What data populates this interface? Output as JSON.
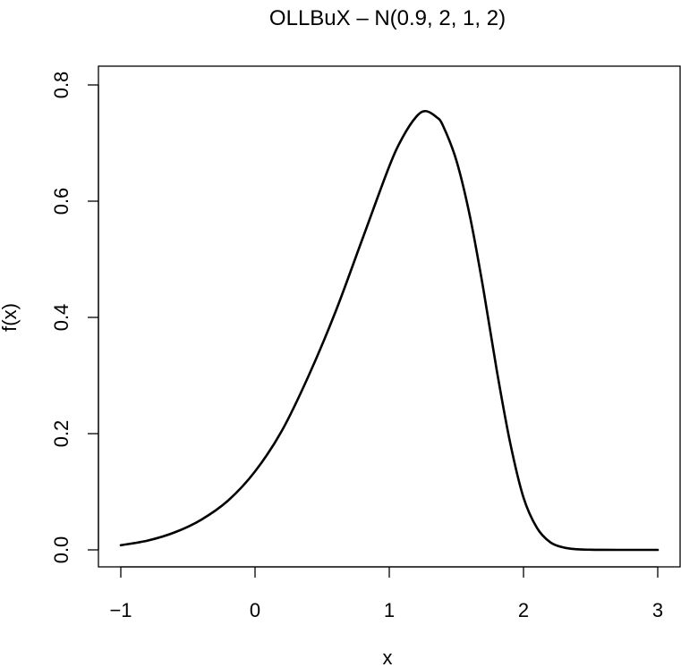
{
  "chart_data": {
    "type": "line",
    "title": "OLLBuX – N(0.9, 2, 1, 2)",
    "xlabel": "x",
    "ylabel": "f(x)",
    "xlim": [
      -1,
      3
    ],
    "ylim": [
      0,
      0.8
    ],
    "xticks": [
      -1,
      0,
      1,
      2,
      3
    ],
    "xtick_labels": [
      "−1",
      "0",
      "1",
      "2",
      "3"
    ],
    "yticks": [
      0,
      0.2,
      0.4,
      0.6,
      0.8
    ],
    "ytick_labels": [
      "0.0",
      "0.2",
      "0.4",
      "0.6",
      "0.8"
    ],
    "grid": false,
    "line_color": "#000000",
    "series": [
      {
        "x": [
          -1.0,
          -0.8,
          -0.6,
          -0.4,
          -0.2,
          0.0,
          0.2,
          0.4,
          0.6,
          0.8,
          1.0,
          1.1,
          1.2,
          1.27,
          1.35,
          1.4,
          1.5,
          1.6,
          1.7,
          1.8,
          1.9,
          2.0,
          2.1,
          2.2,
          2.3,
          2.4,
          2.5,
          2.6,
          2.7,
          2.8,
          3.0
        ],
        "y": [
          0.008,
          0.016,
          0.03,
          0.052,
          0.085,
          0.135,
          0.205,
          0.3,
          0.41,
          0.535,
          0.66,
          0.71,
          0.745,
          0.755,
          0.745,
          0.73,
          0.67,
          0.575,
          0.45,
          0.31,
          0.185,
          0.09,
          0.038,
          0.013,
          0.004,
          0.001,
          0.0003,
          0.0001,
          0.0,
          0.0,
          0.0
        ]
      }
    ]
  }
}
